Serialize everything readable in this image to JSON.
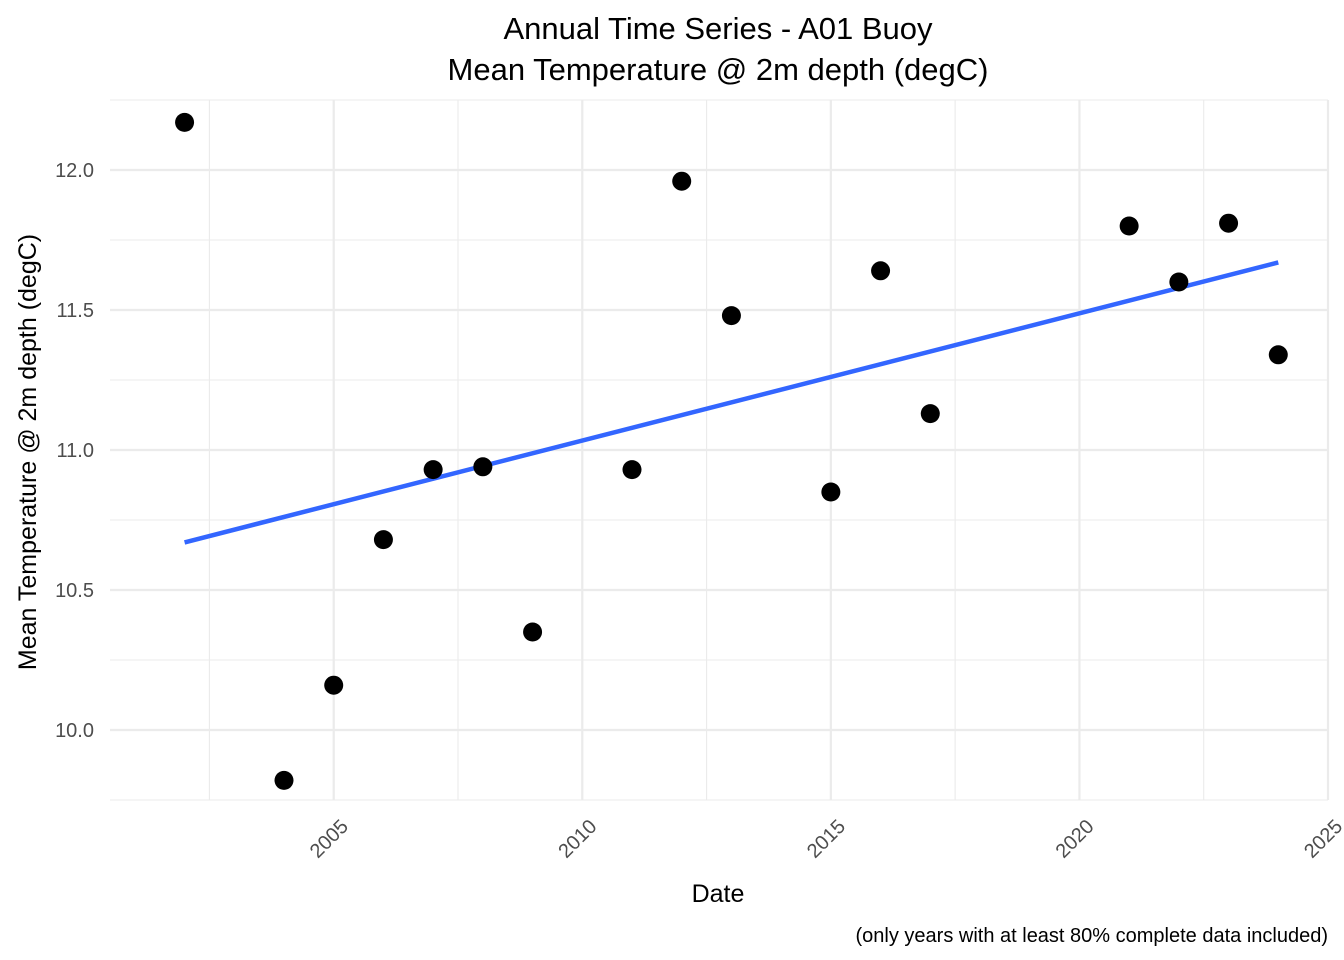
{
  "chart_data": {
    "type": "scatter",
    "title": "Annual Time Series - A01 Buoy",
    "subtitle": "Mean Temperature @ 2m depth (degC)",
    "xlabel": "Date",
    "ylabel": "Mean Temperature @ 2m depth (degC)",
    "caption": "(only years with at least 80% complete data included)",
    "x_ticks": [
      "2005",
      "2010",
      "2015",
      "2020",
      "2025"
    ],
    "y_ticks": [
      "10.0",
      "10.5",
      "11.0",
      "11.5",
      "12.0"
    ],
    "xlim": [
      2000.5,
      2025.0
    ],
    "ylim": [
      9.75,
      12.25
    ],
    "grid": true,
    "series": [
      {
        "type": "scatter",
        "color": "#000000",
        "x": [
          2002,
          2004,
          2005,
          2006,
          2007,
          2008,
          2009,
          2011,
          2012,
          2013,
          2015,
          2016,
          2017,
          2021,
          2022,
          2023,
          2024
        ],
        "y": [
          12.17,
          9.82,
          10.16,
          10.68,
          10.93,
          10.94,
          10.35,
          10.93,
          11.96,
          11.48,
          10.85,
          11.64,
          11.13,
          11.8,
          11.6,
          11.81,
          11.34
        ]
      },
      {
        "type": "line",
        "color": "#3366FF",
        "x": [
          2002,
          2024
        ],
        "y": [
          10.67,
          11.67
        ]
      }
    ]
  }
}
